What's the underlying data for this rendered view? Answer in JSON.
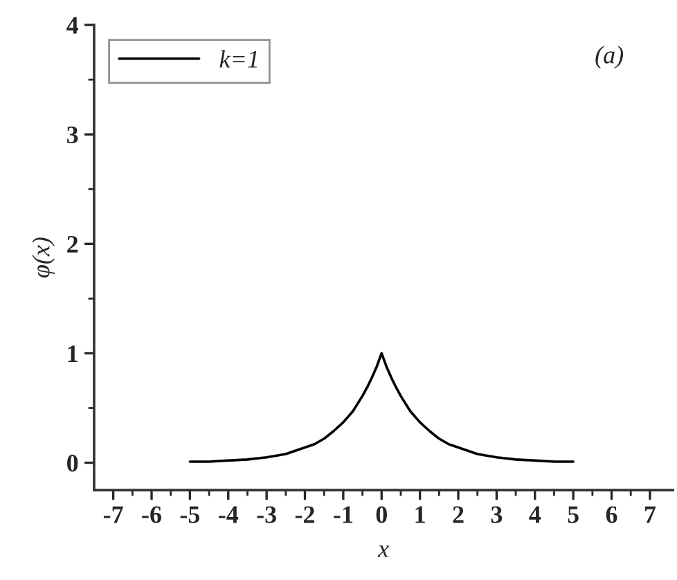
{
  "chart_data": {
    "type": "line",
    "xlabel": "x",
    "ylabel": "φ(x)",
    "annotations": [
      "(a)"
    ],
    "x": [
      -5,
      -4.5,
      -4,
      -3.5,
      -3,
      -2.5,
      -2,
      -1.75,
      -1.5,
      -1.25,
      -1,
      -0.75,
      -0.5,
      -0.375,
      -0.25,
      -0.125,
      0,
      0.125,
      0.25,
      0.375,
      0.5,
      0.75,
      1,
      1.25,
      1.5,
      1.75,
      2,
      2.5,
      3,
      3.5,
      4,
      4.5,
      5
    ],
    "series": [
      {
        "name": "k=1",
        "color": "#000000",
        "values": [
          0.01,
          0.01,
          0.02,
          0.03,
          0.05,
          0.08,
          0.14,
          0.17,
          0.22,
          0.29,
          0.37,
          0.47,
          0.61,
          0.69,
          0.78,
          0.88,
          1.0,
          0.88,
          0.78,
          0.69,
          0.61,
          0.47,
          0.37,
          0.29,
          0.22,
          0.17,
          0.14,
          0.08,
          0.05,
          0.03,
          0.02,
          0.01,
          0.01
        ]
      }
    ],
    "xlim": [
      -7.5,
      7.6
    ],
    "xticks": [
      -7,
      -6,
      -5,
      -4,
      -3,
      -2,
      -1,
      0,
      1,
      2,
      3,
      4,
      5,
      6,
      7
    ],
    "ylim": [
      -0.25,
      4
    ],
    "yticks": [
      0,
      1,
      2,
      3,
      4
    ],
    "grid": false,
    "legend": "top left",
    "marker": "none",
    "line_style": "solid"
  }
}
